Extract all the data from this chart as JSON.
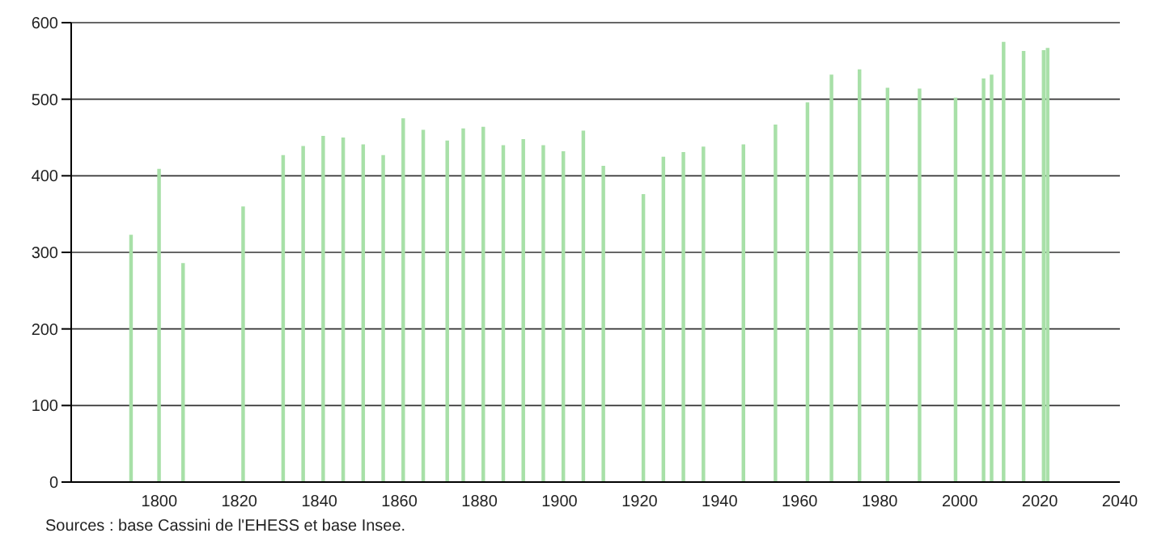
{
  "chart_data": {
    "type": "bar",
    "x": [
      1793,
      1800,
      1806,
      1821,
      1831,
      1836,
      1841,
      1846,
      1851,
      1856,
      1861,
      1866,
      1872,
      1876,
      1881,
      1886,
      1891,
      1896,
      1901,
      1906,
      1911,
      1921,
      1926,
      1931,
      1936,
      1946,
      1954,
      1962,
      1968,
      1975,
      1982,
      1990,
      1999,
      2006,
      2008,
      2011,
      2016,
      2021,
      2022
    ],
    "values": [
      323,
      409,
      286,
      360,
      427,
      439,
      452,
      450,
      441,
      427,
      475,
      460,
      446,
      462,
      464,
      440,
      448,
      440,
      432,
      459,
      413,
      376,
      425,
      431,
      438,
      441,
      467,
      496,
      532,
      539,
      515,
      514,
      502,
      527,
      532,
      575,
      563,
      564,
      567
    ],
    "color": "#a8e0a8",
    "xlim": [
      1778,
      2040
    ],
    "xticks": [
      1800,
      1820,
      1840,
      1860,
      1880,
      1900,
      1920,
      1940,
      1960,
      1980,
      2000,
      2020,
      2040
    ],
    "ylim": [
      0,
      600
    ],
    "yticks": [
      0,
      100,
      200,
      300,
      400,
      500,
      600
    ],
    "grid": "y",
    "annotations": [
      "Sources : base Cassini de l'EHESS et base Insee."
    ]
  }
}
